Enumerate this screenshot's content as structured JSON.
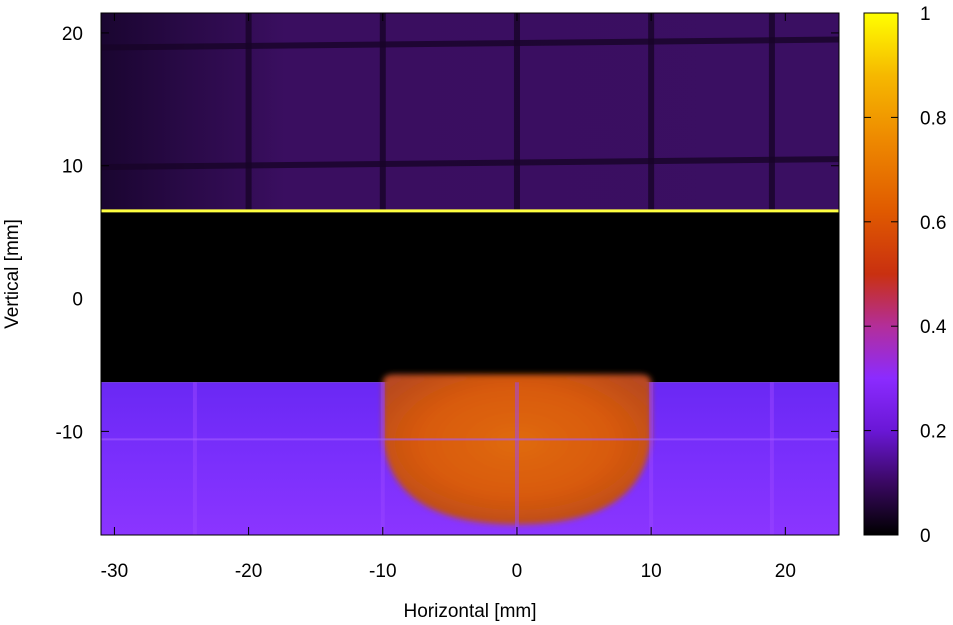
{
  "chart_data": {
    "type": "heatmap",
    "title": "",
    "xlabel": "Horizontal [mm]",
    "ylabel": "Vertical [mm]",
    "xlim": [
      -31,
      24
    ],
    "ylim": [
      -17.8,
      21.5
    ],
    "xticks": [
      -30,
      -20,
      -10,
      0,
      10,
      20
    ],
    "xtick_labels": [
      "-30",
      "-20",
      "-10",
      "0",
      "10",
      "20"
    ],
    "yticks": [
      -10,
      0,
      10,
      20
    ],
    "ytick_labels": [
      "-10",
      "0",
      "10",
      "20"
    ],
    "colorbar": {
      "range": [
        0,
        1
      ],
      "ticks": [
        0,
        0.2,
        0.4,
        0.6,
        0.8,
        1
      ],
      "tick_labels": [
        "0",
        "0.2",
        "0.4",
        "0.6",
        "0.8",
        "1"
      ],
      "colormap": [
        "#000000",
        "#3a0862",
        "#6a17d6",
        "#8b2bff",
        "#b32e9a",
        "#c93010",
        "#e05a00",
        "#ee8a00",
        "#f6b800",
        "#ffff00"
      ]
    },
    "regions": [
      {
        "name": "upper region",
        "x": [
          -31,
          24
        ],
        "y": [
          6.6,
          21.5
        ],
        "value": 0.08
      },
      {
        "name": "dark gap",
        "x": [
          -31,
          24
        ],
        "y": [
          -6.3,
          6.6
        ],
        "value": 0.0
      },
      {
        "name": "lower region",
        "x": [
          -31,
          24
        ],
        "y": [
          -17.8,
          -6.3
        ],
        "value": 0.28
      },
      {
        "name": "central peak",
        "x": [
          -10,
          10
        ],
        "y": [
          -17,
          -5.7
        ],
        "value": 0.62
      }
    ],
    "features": [
      {
        "name": "bright line",
        "y": 6.6,
        "value": 1.0
      }
    ],
    "grid_lines_x": [
      -20,
      -10,
      0,
      10,
      19
    ],
    "grid_lines_y": [
      10.2,
      19.2
    ],
    "grid": false,
    "legend": "colorbar right"
  }
}
